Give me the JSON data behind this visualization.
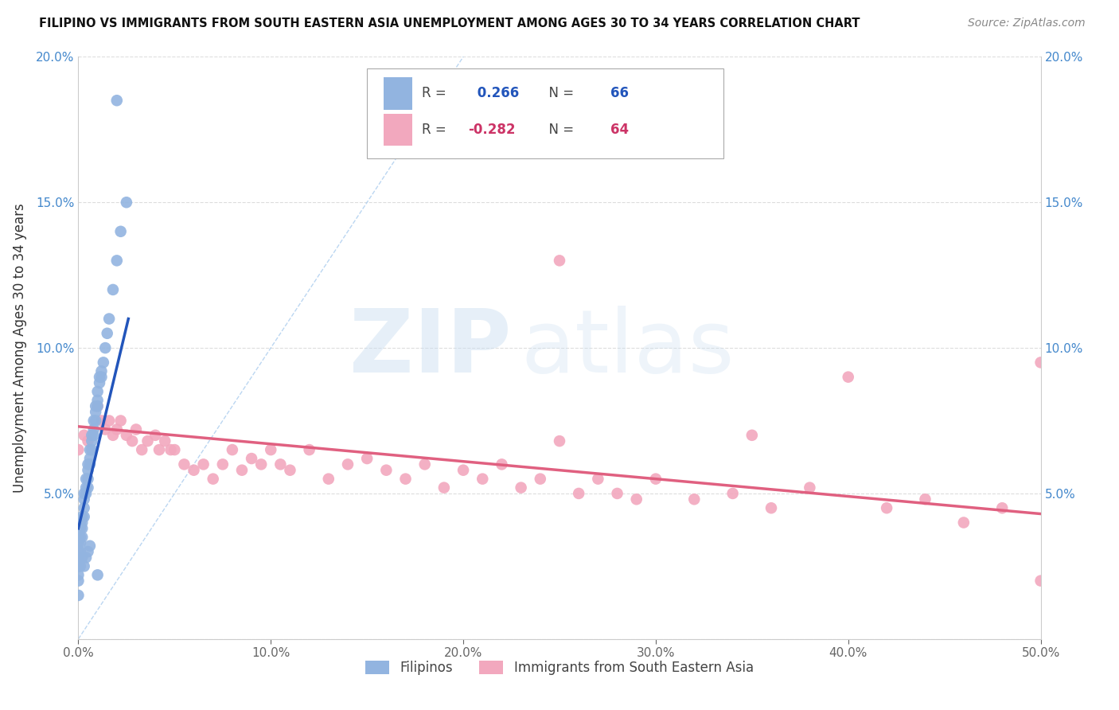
{
  "title": "FILIPINO VS IMMIGRANTS FROM SOUTH EASTERN ASIA UNEMPLOYMENT AMONG AGES 30 TO 34 YEARS CORRELATION CHART",
  "source": "Source: ZipAtlas.com",
  "ylabel": "Unemployment Among Ages 30 to 34 years",
  "xlim": [
    0,
    0.5
  ],
  "ylim": [
    0,
    0.2
  ],
  "xtick_vals": [
    0.0,
    0.1,
    0.2,
    0.3,
    0.4,
    0.5
  ],
  "ytick_vals": [
    0.0,
    0.05,
    0.1,
    0.15,
    0.2
  ],
  "xticklabels": [
    "0.0%",
    "10.0%",
    "20.0%",
    "30.0%",
    "40.0%",
    "50.0%"
  ],
  "yticklabels": [
    "",
    "5.0%",
    "10.0%",
    "15.0%",
    "20.0%"
  ],
  "legend1_label": "Filipinos",
  "legend2_label": "Immigrants from South Eastern Asia",
  "R1": 0.266,
  "N1": 66,
  "R2": -0.282,
  "N2": 64,
  "blue_color": "#92b4e0",
  "pink_color": "#f2a8be",
  "blue_line_color": "#2255bb",
  "pink_line_color": "#e06080",
  "diagonal_color": "#aaccee",
  "background_color": "#ffffff",
  "grid_color": "#dddddd",
  "tick_color": "#4488cc",
  "title_color": "#111111",
  "source_color": "#888888",
  "blue_scatter_x": [
    0.0,
    0.0,
    0.0,
    0.0,
    0.0,
    0.0,
    0.0,
    0.0,
    0.0,
    0.001,
    0.001,
    0.001,
    0.001,
    0.001,
    0.002,
    0.002,
    0.002,
    0.002,
    0.003,
    0.003,
    0.003,
    0.003,
    0.004,
    0.004,
    0.004,
    0.005,
    0.005,
    0.005,
    0.005,
    0.006,
    0.006,
    0.006,
    0.007,
    0.007,
    0.007,
    0.008,
    0.008,
    0.008,
    0.009,
    0.009,
    0.009,
    0.01,
    0.01,
    0.01,
    0.011,
    0.011,
    0.012,
    0.012,
    0.013,
    0.014,
    0.015,
    0.016,
    0.018,
    0.02,
    0.022,
    0.025,
    0.0,
    0.0,
    0.001,
    0.002,
    0.003,
    0.004,
    0.005,
    0.006,
    0.01,
    0.02
  ],
  "blue_scatter_y": [
    0.04,
    0.04,
    0.038,
    0.035,
    0.033,
    0.03,
    0.028,
    0.025,
    0.022,
    0.04,
    0.038,
    0.035,
    0.033,
    0.03,
    0.042,
    0.04,
    0.038,
    0.035,
    0.05,
    0.048,
    0.045,
    0.042,
    0.055,
    0.052,
    0.05,
    0.06,
    0.058,
    0.055,
    0.052,
    0.065,
    0.062,
    0.06,
    0.07,
    0.068,
    0.065,
    0.075,
    0.072,
    0.07,
    0.08,
    0.078,
    0.075,
    0.085,
    0.082,
    0.08,
    0.09,
    0.088,
    0.092,
    0.09,
    0.095,
    0.1,
    0.105,
    0.11,
    0.12,
    0.13,
    0.14,
    0.15,
    0.02,
    0.015,
    0.025,
    0.028,
    0.025,
    0.028,
    0.03,
    0.032,
    0.022,
    0.185
  ],
  "pink_scatter_x": [
    0.0,
    0.003,
    0.005,
    0.01,
    0.012,
    0.014,
    0.016,
    0.018,
    0.02,
    0.022,
    0.025,
    0.028,
    0.03,
    0.033,
    0.036,
    0.04,
    0.042,
    0.045,
    0.048,
    0.05,
    0.055,
    0.06,
    0.065,
    0.07,
    0.075,
    0.08,
    0.085,
    0.09,
    0.095,
    0.1,
    0.105,
    0.11,
    0.12,
    0.13,
    0.14,
    0.15,
    0.16,
    0.17,
    0.18,
    0.19,
    0.2,
    0.21,
    0.22,
    0.23,
    0.24,
    0.25,
    0.26,
    0.27,
    0.28,
    0.29,
    0.3,
    0.32,
    0.34,
    0.36,
    0.38,
    0.4,
    0.42,
    0.44,
    0.46,
    0.48,
    0.5,
    0.5,
    0.25,
    0.35
  ],
  "pink_scatter_y": [
    0.065,
    0.07,
    0.068,
    0.08,
    0.075,
    0.072,
    0.075,
    0.07,
    0.072,
    0.075,
    0.07,
    0.068,
    0.072,
    0.065,
    0.068,
    0.07,
    0.065,
    0.068,
    0.065,
    0.065,
    0.06,
    0.058,
    0.06,
    0.055,
    0.06,
    0.065,
    0.058,
    0.062,
    0.06,
    0.065,
    0.06,
    0.058,
    0.065,
    0.055,
    0.06,
    0.062,
    0.058,
    0.055,
    0.06,
    0.052,
    0.058,
    0.055,
    0.06,
    0.052,
    0.055,
    0.13,
    0.05,
    0.055,
    0.05,
    0.048,
    0.055,
    0.048,
    0.05,
    0.045,
    0.052,
    0.09,
    0.045,
    0.048,
    0.04,
    0.045,
    0.095,
    0.02,
    0.068,
    0.07
  ],
  "blue_line_x": [
    0.0,
    0.026
  ],
  "blue_line_y": [
    0.038,
    0.11
  ],
  "pink_line_x": [
    0.0,
    0.5
  ],
  "pink_line_y": [
    0.073,
    0.043
  ],
  "diag_line_x": [
    0.0,
    0.2
  ],
  "diag_line_y": [
    0.0,
    0.2
  ]
}
